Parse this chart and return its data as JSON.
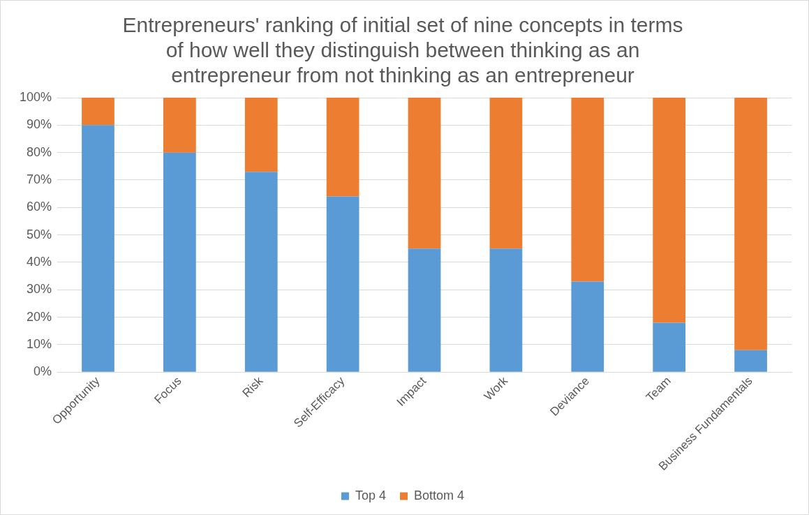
{
  "chart_data": {
    "type": "bar",
    "title": "Entrepreneurs' ranking of initial set of nine concepts in terms of how well they distinguish between thinking as an entrepreneur from not thinking as an entrepreneur",
    "categories": [
      "Opportunity",
      "Focus",
      "Risk",
      "Self-Efficacy",
      "Impact",
      "Work",
      "Deviance",
      "Team",
      "Business Fundamentals"
    ],
    "stacked": true,
    "series": [
      {
        "name": "Top 4",
        "color": "#5b9bd5",
        "values": [
          90,
          80,
          73,
          64,
          45,
          45,
          33,
          18,
          8
        ]
      },
      {
        "name": "Bottom 4",
        "color": "#ed7d31",
        "values": [
          10,
          20,
          27,
          36,
          55,
          55,
          67,
          82,
          92
        ]
      }
    ],
    "ylim": [
      0,
      100
    ],
    "yticks": [
      {
        "value": 0,
        "label": "0%"
      },
      {
        "value": 10,
        "label": "10%"
      },
      {
        "value": 20,
        "label": "20%"
      },
      {
        "value": 30,
        "label": "30%"
      },
      {
        "value": 40,
        "label": "40%"
      },
      {
        "value": 50,
        "label": "50%"
      },
      {
        "value": 60,
        "label": "60%"
      },
      {
        "value": 70,
        "label": "70%"
      },
      {
        "value": 80,
        "label": "80%"
      },
      {
        "value": 90,
        "label": "90%"
      },
      {
        "value": 100,
        "label": "100%"
      }
    ],
    "grid": "y",
    "legend": "bottom"
  }
}
